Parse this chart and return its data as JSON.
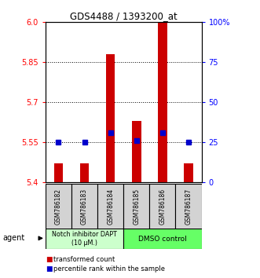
{
  "title": "GDS4488 / 1393200_at",
  "samples": [
    "GSM786182",
    "GSM786183",
    "GSM786184",
    "GSM786185",
    "GSM786186",
    "GSM786187"
  ],
  "red_values": [
    5.47,
    5.47,
    5.88,
    5.63,
    6.0,
    5.47
  ],
  "blue_values": [
    5.55,
    5.55,
    5.585,
    5.555,
    5.585,
    5.55
  ],
  "y_min": 5.4,
  "y_max": 6.0,
  "y_ticks_left": [
    5.4,
    5.55,
    5.7,
    5.85,
    6.0
  ],
  "dotted_lines": [
    5.55,
    5.7,
    5.85
  ],
  "right_tick_labels": [
    "100%",
    "75",
    "50",
    "25",
    "0"
  ],
  "right_tick_positions": [
    6.0,
    5.85,
    5.7,
    5.55,
    5.4
  ],
  "group1_label": "Notch inhibitor DAPT\n(10 μM.)",
  "group2_label": "DMSO control",
  "group1_color": "#ccffcc",
  "group2_color": "#66ff66",
  "agent_label": "agent",
  "legend_red": "transformed count",
  "legend_blue": "percentile rank within the sample",
  "bar_color": "#cc0000",
  "dot_color": "#0000cc",
  "bar_width": 0.35,
  "base_value": 5.4
}
